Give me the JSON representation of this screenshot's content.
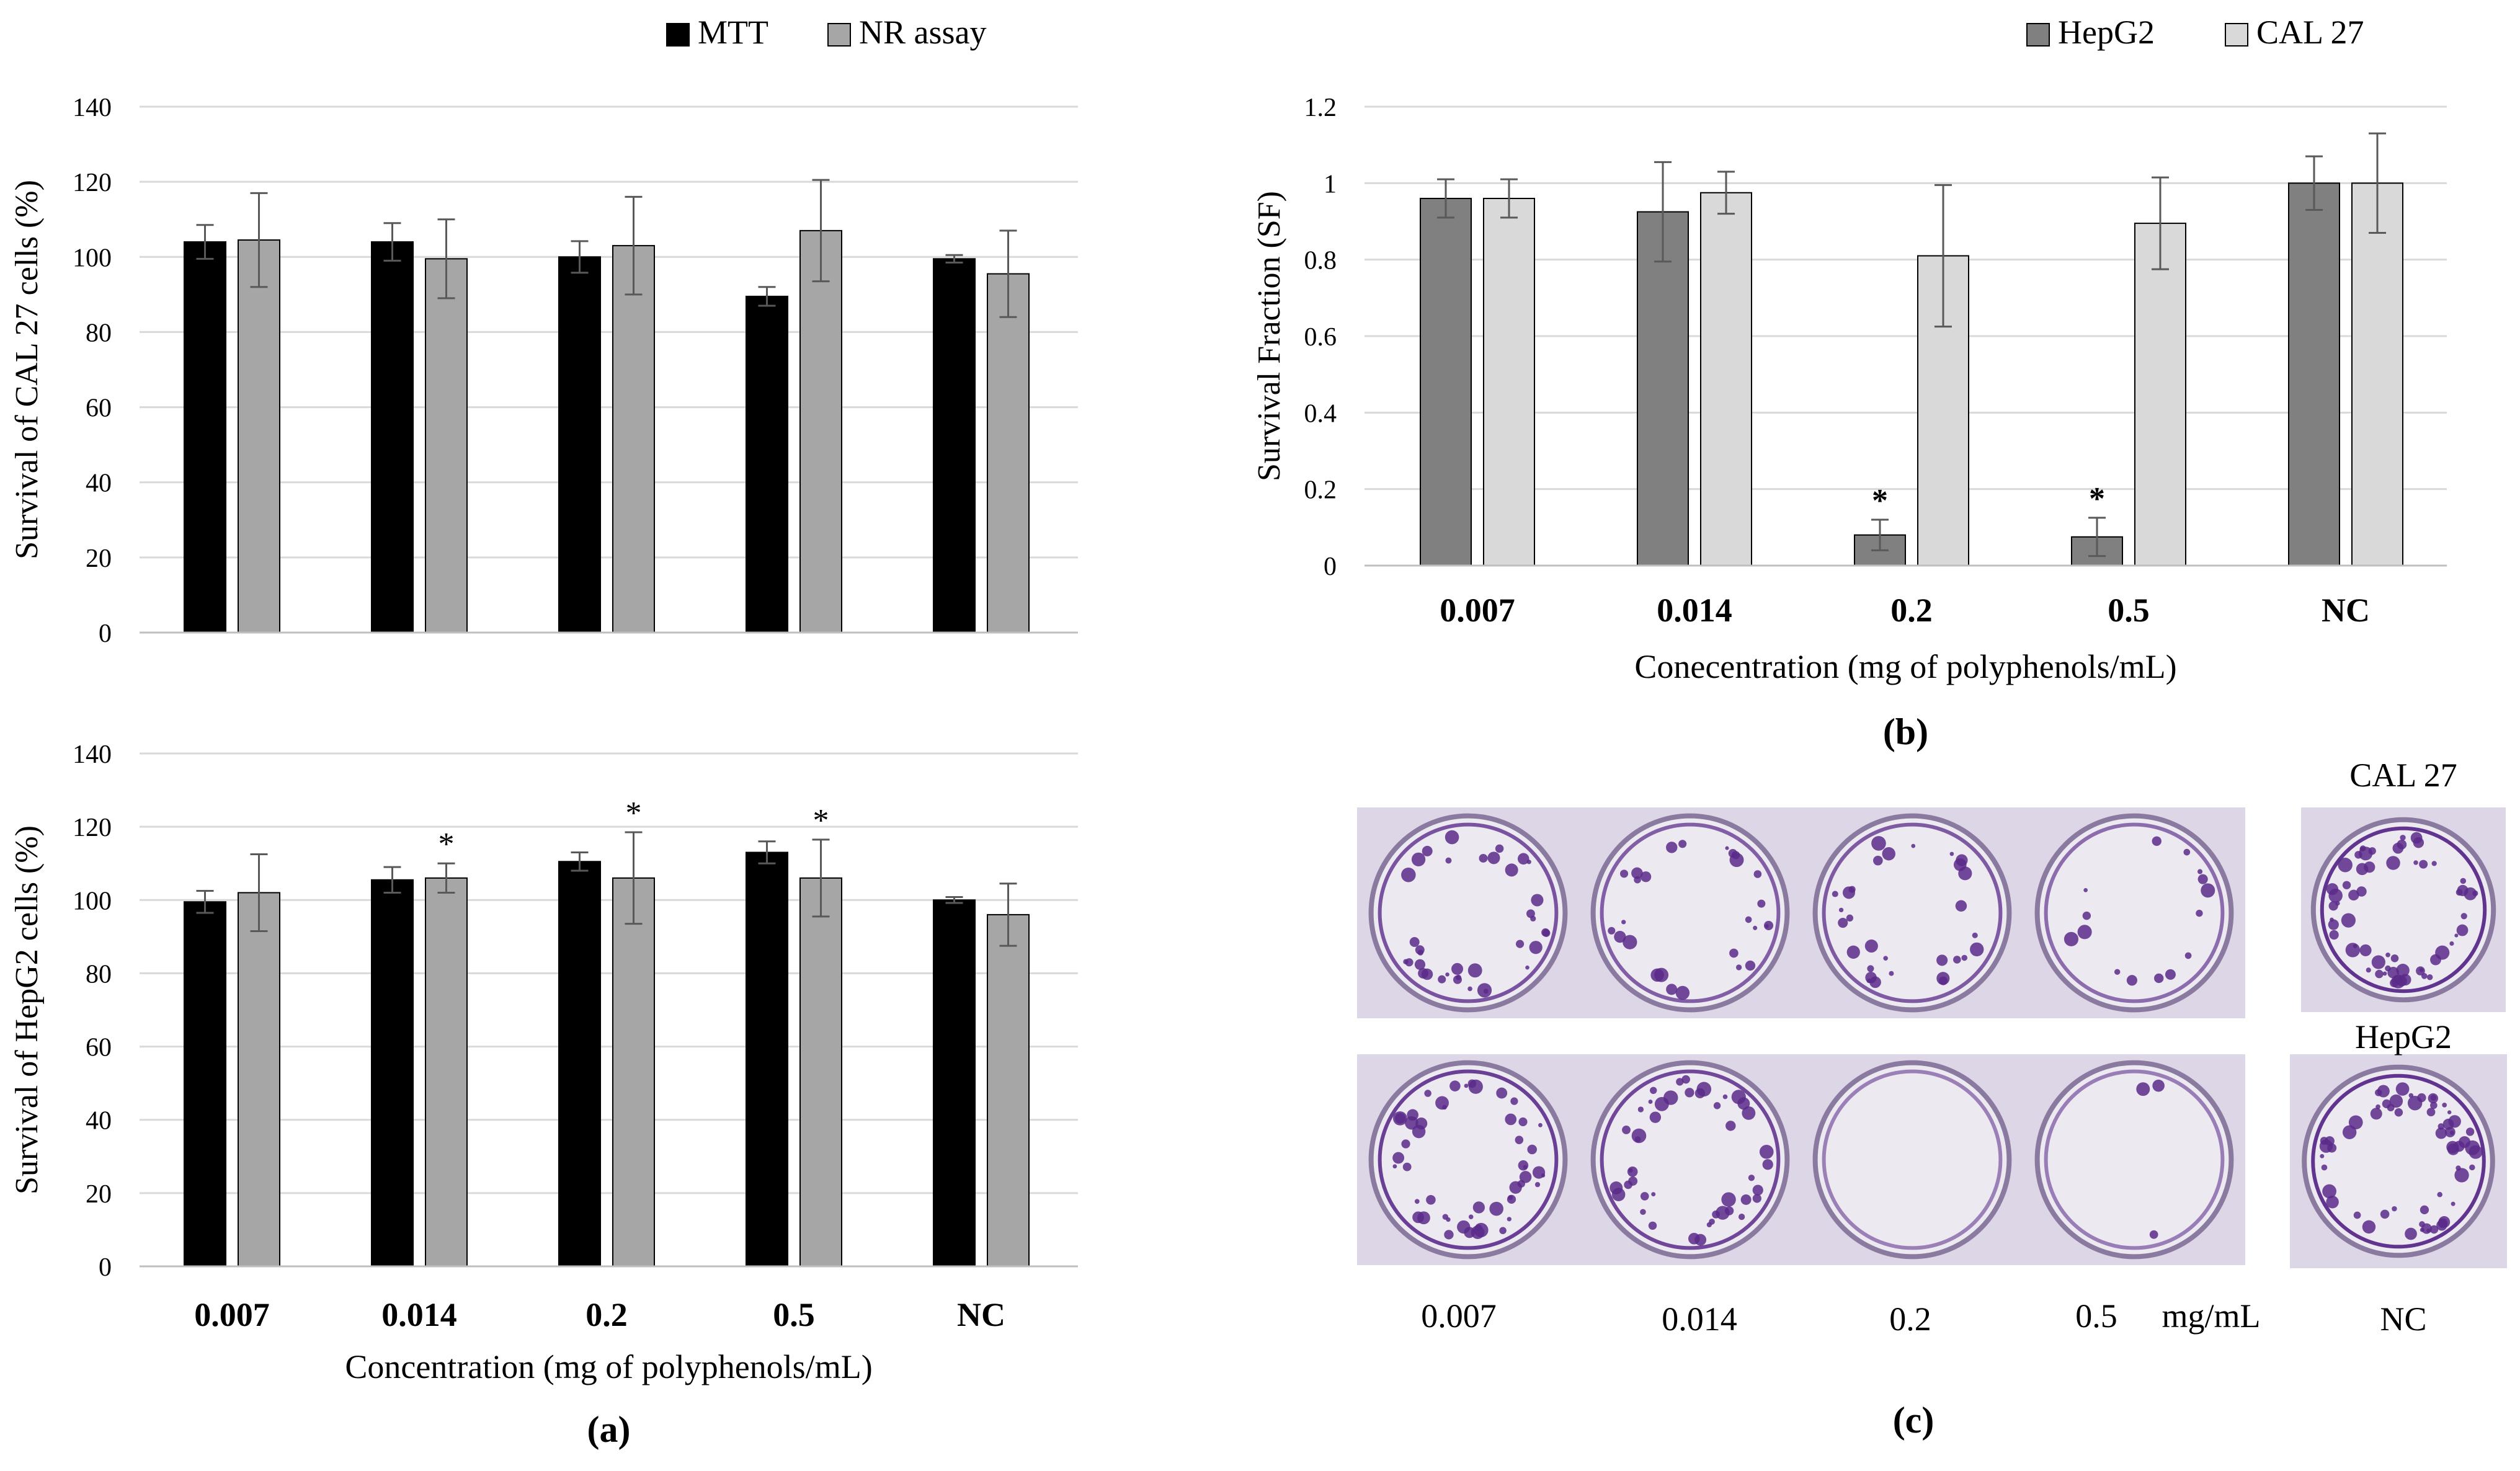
{
  "chart_data": [
    {
      "type": "bar",
      "panel": "a-top",
      "ylabel": "Survival of CAL 27 cells (%)",
      "ylim": [
        0,
        140
      ],
      "yticks": [
        0,
        20,
        40,
        60,
        80,
        100,
        120,
        140
      ],
      "grid": true,
      "legend_position": "top-right",
      "categories": [
        "0.007",
        "0.014",
        "0.2",
        "0.5",
        "NC"
      ],
      "series": [
        {
          "name": "MTT",
          "color": "#000000",
          "values": [
            104,
            104,
            100,
            89.5,
            99.5
          ],
          "errors": [
            4.5,
            5,
            4.2,
            2.5,
            1
          ]
        },
        {
          "name": "NR assay",
          "color": "#a6a6a6",
          "values": [
            104.5,
            99.5,
            103,
            107,
            95.5
          ],
          "errors": [
            12.5,
            10.5,
            13,
            13.5,
            11.5
          ]
        }
      ],
      "annotations": []
    },
    {
      "type": "bar",
      "panel": "a-bottom",
      "ylabel": "Survival of HepG2 cells (%)",
      "xlabel": "Concentration (mg of polyphenols/mL)",
      "caption": "(a)",
      "ylim": [
        0,
        140
      ],
      "yticks": [
        0,
        20,
        40,
        60,
        80,
        100,
        120,
        140
      ],
      "grid": true,
      "categories": [
        "0.007",
        "0.014",
        "0.2",
        "0.5",
        "NC"
      ],
      "series": [
        {
          "name": "MTT",
          "color": "#000000",
          "values": [
            99.5,
            105.5,
            110.5,
            113,
            100
          ],
          "errors": [
            3,
            3.5,
            2.5,
            3,
            0.8
          ]
        },
        {
          "name": "NR assay",
          "color": "#a6a6a6",
          "values": [
            102,
            106,
            106,
            106,
            96
          ],
          "errors": [
            10.5,
            4,
            12.5,
            10.5,
            8.5
          ]
        }
      ],
      "annotations": [
        {
          "category": "0.014",
          "series": "NR assay",
          "text": "*"
        },
        {
          "category": "0.2",
          "series": "NR assay",
          "text": "*"
        },
        {
          "category": "0.5",
          "series": "NR assay",
          "text": "*"
        }
      ]
    },
    {
      "type": "bar",
      "panel": "b",
      "ylabel": "Survival Fraction (SF)",
      "xlabel": "Conecentration (mg of polyphenols/mL)",
      "caption": "(b)",
      "ylim": [
        0,
        1.2
      ],
      "yticks": [
        0,
        0.2,
        0.4,
        0.6,
        0.8,
        1,
        1.2
      ],
      "grid": true,
      "legend_position": "top-right",
      "categories": [
        "0.007",
        "0.014",
        "0.2",
        "0.5",
        "NC"
      ],
      "series": [
        {
          "name": "HepG2",
          "color": "#808080",
          "values": [
            0.96,
            0.925,
            0.08,
            0.075,
            1.0
          ],
          "errors": [
            0.05,
            0.13,
            0.04,
            0.05,
            0.07
          ]
        },
        {
          "name": "CAL 27",
          "color": "#d9d9d9",
          "values": [
            0.96,
            0.975,
            0.81,
            0.895,
            1.0
          ],
          "errors": [
            0.05,
            0.055,
            0.185,
            0.12,
            0.13
          ]
        }
      ],
      "annotations": [
        {
          "category": "0.2",
          "series": "HepG2",
          "text": "*"
        },
        {
          "category": "0.5",
          "series": "HepG2",
          "text": "*"
        }
      ]
    }
  ],
  "panel_c": {
    "caption": "(c)",
    "cal27_label": "CAL 27",
    "hepg2_label": "HepG2",
    "concentration_labels": [
      "0.007",
      "0.014",
      "0.2",
      "0.5"
    ],
    "unit_label": "mg/mL",
    "nc_label": "NC",
    "plate_color": "#dcd6e6",
    "stain_color": "#5a2a8a",
    "colony_density": {
      "cal27": [
        0.6,
        0.45,
        0.5,
        0.25,
        1.0
      ],
      "hepg2": [
        0.85,
        0.75,
        0.0,
        0.05,
        1.0
      ]
    }
  }
}
